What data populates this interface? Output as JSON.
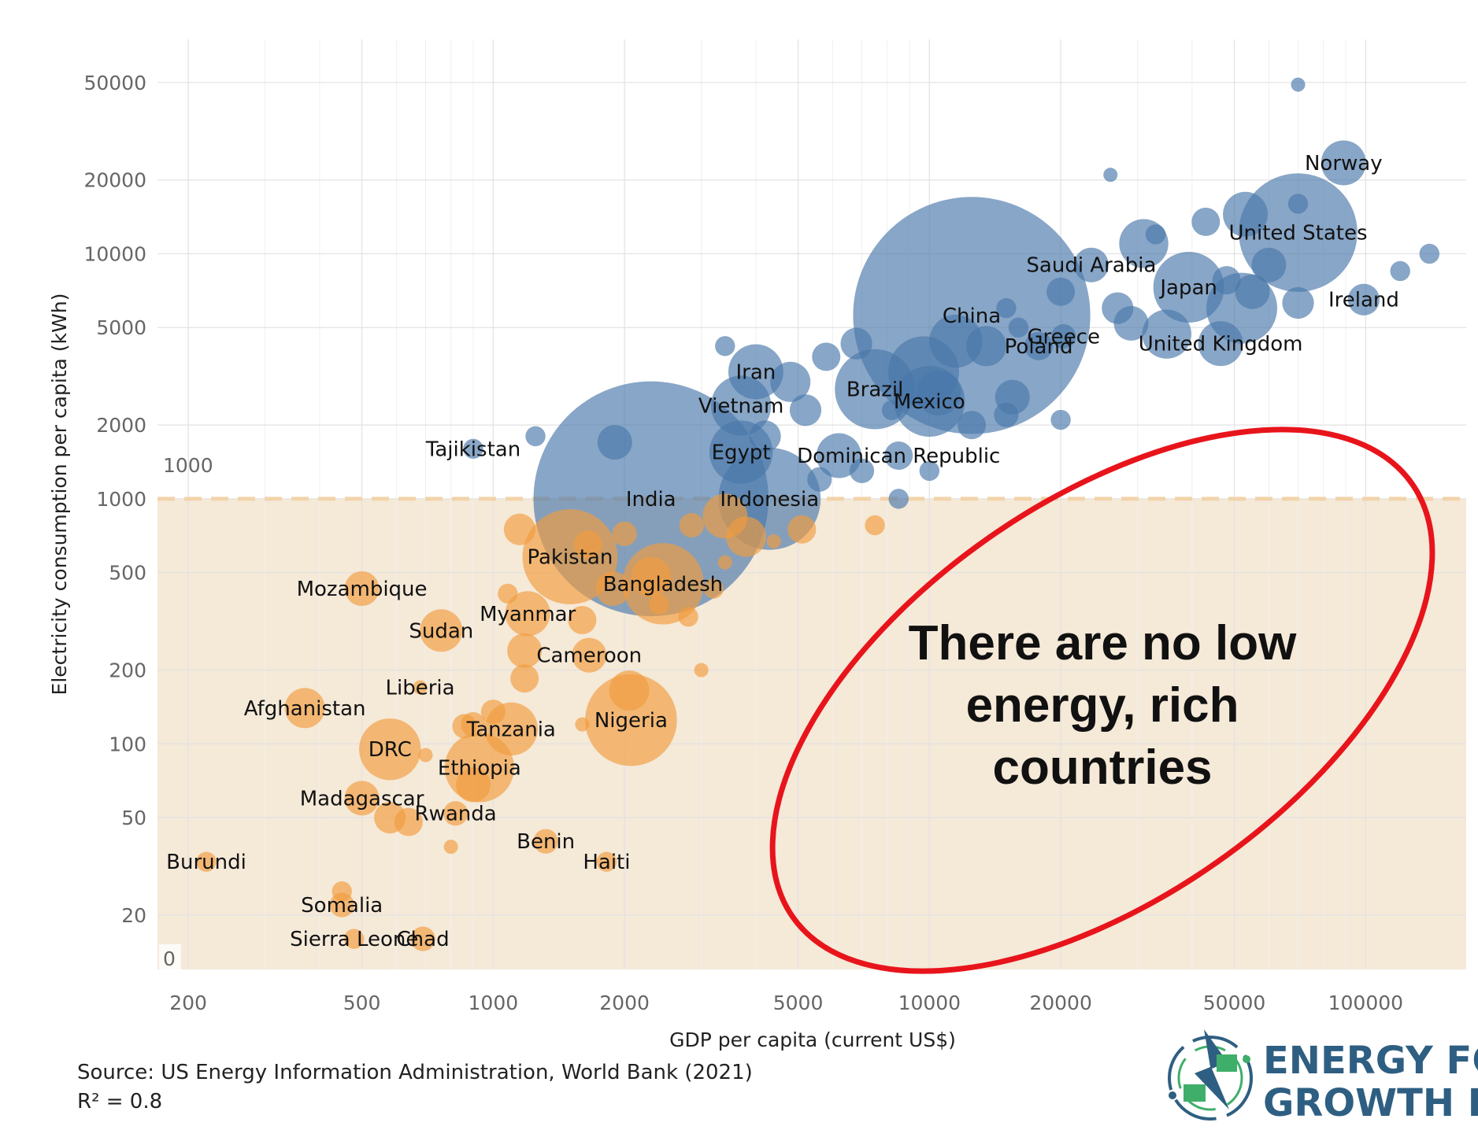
{
  "chart_data": {
    "type": "scatter",
    "xlabel": "GDP per capita (current US$)",
    "ylabel": "Electricity consumption per capita (kWh)",
    "x_scale": "log",
    "y_scale": "log",
    "xlim": [
      170,
      170000
    ],
    "ylim": [
      12,
      75000
    ],
    "x_ticks": [
      200,
      500,
      1000,
      2000,
      5000,
      10000,
      20000,
      50000,
      100000
    ],
    "y_ticks": [
      20,
      50,
      100,
      200,
      500,
      1000,
      2000,
      5000,
      10000,
      20000,
      50000
    ],
    "threshold": {
      "value": 1000,
      "label": "1000",
      "zero_label": "0",
      "color": "#f2d3aa",
      "fill": "#f5e9d8"
    },
    "colors": {
      "above": "#4a78aa",
      "below": "#f29d3e"
    },
    "grid": true,
    "points": [
      {
        "label": "Norway",
        "gdp": 89000,
        "kwh": 23500,
        "size": 10
      },
      {
        "label": "United States",
        "gdp": 70000,
        "kwh": 12200,
        "size": 70
      },
      {
        "label": "Ireland",
        "gdp": 99000,
        "kwh": 6500,
        "size": 5
      },
      {
        "label": "Japan",
        "gdp": 39300,
        "kwh": 7300,
        "size": 25
      },
      {
        "label": "United Kingdom",
        "gdp": 46500,
        "kwh": 4300,
        "size": 10
      },
      {
        "label": "Saudi Arabia",
        "gdp": 23500,
        "kwh": 9000,
        "size": 6
      },
      {
        "label": "Greece",
        "gdp": 20300,
        "kwh": 4600,
        "size": 3
      },
      {
        "label": "Poland",
        "gdp": 17800,
        "kwh": 4200,
        "size": 4
      },
      {
        "label": "China",
        "gdp": 12500,
        "kwh": 5600,
        "size": 280
      },
      {
        "label": "Iran",
        "gdp": 4000,
        "kwh": 3300,
        "size": 15
      },
      {
        "label": "Brazil",
        "gdp": 7500,
        "kwh": 2800,
        "size": 32
      },
      {
        "label": "Mexico",
        "gdp": 10000,
        "kwh": 2500,
        "size": 25
      },
      {
        "label": "Vietnam",
        "gdp": 3700,
        "kwh": 2400,
        "size": 18
      },
      {
        "label": "Egypt",
        "gdp": 3700,
        "kwh": 1550,
        "size": 20
      },
      {
        "label": "Dominican Republic",
        "gdp": 8500,
        "kwh": 1500,
        "size": 4
      },
      {
        "label": "Tajikistan",
        "gdp": 900,
        "kwh": 1600,
        "size": 2
      },
      {
        "label": "India",
        "gdp": 2300,
        "kwh": 1000,
        "size": 275
      },
      {
        "label": "Indonesia",
        "gdp": 4300,
        "kwh": 1000,
        "size": 52
      },
      {
        "label": "Pakistan",
        "gdp": 1500,
        "kwh": 580,
        "size": 45
      },
      {
        "label": "Bangladesh",
        "gdp": 2450,
        "kwh": 450,
        "size": 33
      },
      {
        "label": "Mozambique",
        "gdp": 500,
        "kwh": 430,
        "size": 6
      },
      {
        "label": "Myanmar",
        "gdp": 1200,
        "kwh": 340,
        "size": 10
      },
      {
        "label": "Sudan",
        "gdp": 760,
        "kwh": 290,
        "size": 9
      },
      {
        "label": "Cameroon",
        "gdp": 1660,
        "kwh": 230,
        "size": 6
      },
      {
        "label": "Liberia",
        "gdp": 680,
        "kwh": 170,
        "size": 1
      },
      {
        "label": "Afghanistan",
        "gdp": 370,
        "kwh": 140,
        "size": 8
      },
      {
        "label": "Nigeria",
        "gdp": 2070,
        "kwh": 125,
        "size": 42
      },
      {
        "label": "Tanzania",
        "gdp": 1100,
        "kwh": 115,
        "size": 14
      },
      {
        "label": "DRC",
        "gdp": 580,
        "kwh": 95,
        "size": 19
      },
      {
        "label": "Ethiopia",
        "gdp": 930,
        "kwh": 80,
        "size": 24
      },
      {
        "label": "Madagascar",
        "gdp": 500,
        "kwh": 60,
        "size": 6
      },
      {
        "label": "Rwanda",
        "gdp": 820,
        "kwh": 52,
        "size": 3
      },
      {
        "label": "Benin",
        "gdp": 1320,
        "kwh": 40,
        "size": 3
      },
      {
        "label": "Haiti",
        "gdp": 1820,
        "kwh": 33,
        "size": 2
      },
      {
        "label": "Burundi",
        "gdp": 220,
        "kwh": 33,
        "size": 2
      },
      {
        "label": "Somalia",
        "gdp": 450,
        "kwh": 22,
        "size": 3
      },
      {
        "label": "Sierra Leone",
        "gdp": 480,
        "kwh": 16,
        "size": 2
      },
      {
        "label": "Chad",
        "gdp": 690,
        "kwh": 16,
        "size": 3
      },
      {
        "gdp": 70000,
        "kwh": 49000,
        "size": 1
      },
      {
        "gdp": 26000,
        "kwh": 21000,
        "size": 1
      },
      {
        "gdp": 70000,
        "kwh": 16000,
        "size": 2
      },
      {
        "gdp": 53000,
        "kwh": 14500,
        "size": 10
      },
      {
        "gdp": 43000,
        "kwh": 13500,
        "size": 4
      },
      {
        "gdp": 31000,
        "kwh": 11000,
        "size": 12
      },
      {
        "gdp": 33000,
        "kwh": 12000,
        "size": 2
      },
      {
        "gdp": 140000,
        "kwh": 10000,
        "size": 2
      },
      {
        "gdp": 120000,
        "kwh": 8500,
        "size": 2
      },
      {
        "gdp": 60000,
        "kwh": 9000,
        "size": 6
      },
      {
        "gdp": 52000,
        "kwh": 6000,
        "size": 25
      },
      {
        "gdp": 48000,
        "kwh": 7800,
        "size": 4
      },
      {
        "gdp": 55000,
        "kwh": 7000,
        "size": 6
      },
      {
        "gdp": 70000,
        "kwh": 6300,
        "size": 5
      },
      {
        "gdp": 27000,
        "kwh": 6000,
        "size": 5
      },
      {
        "gdp": 35000,
        "kwh": 4700,
        "size": 12
      },
      {
        "gdp": 29000,
        "kwh": 5200,
        "size": 6
      },
      {
        "gdp": 16000,
        "kwh": 5000,
        "size": 2
      },
      {
        "gdp": 20000,
        "kwh": 7000,
        "size": 4
      },
      {
        "gdp": 13500,
        "kwh": 4200,
        "size": 8
      },
      {
        "gdp": 15000,
        "kwh": 6000,
        "size": 2
      },
      {
        "gdp": 11500,
        "kwh": 4400,
        "size": 14
      },
      {
        "gdp": 9700,
        "kwh": 3300,
        "size": 25
      },
      {
        "gdp": 10500,
        "kwh": 2700,
        "size": 10
      },
      {
        "gdp": 15500,
        "kwh": 2600,
        "size": 6
      },
      {
        "gdp": 15000,
        "kwh": 2200,
        "size": 3
      },
      {
        "gdp": 12500,
        "kwh": 2000,
        "size": 4
      },
      {
        "gdp": 20000,
        "kwh": 2100,
        "size": 2
      },
      {
        "gdp": 6800,
        "kwh": 4300,
        "size": 5
      },
      {
        "gdp": 5800,
        "kwh": 3800,
        "size": 4
      },
      {
        "gdp": 4800,
        "kwh": 3000,
        "size": 8
      },
      {
        "gdp": 5200,
        "kwh": 2300,
        "size": 5
      },
      {
        "gdp": 8200,
        "kwh": 2300,
        "size": 2
      },
      {
        "gdp": 3400,
        "kwh": 4200,
        "size": 2
      },
      {
        "gdp": 4200,
        "kwh": 1800,
        "size": 5
      },
      {
        "gdp": 6200,
        "kwh": 1500,
        "size": 10
      },
      {
        "gdp": 7000,
        "kwh": 1300,
        "size": 3
      },
      {
        "gdp": 5600,
        "kwh": 1200,
        "size": 3
      },
      {
        "gdp": 10000,
        "kwh": 1300,
        "size": 2
      },
      {
        "gdp": 8500,
        "kwh": 1000,
        "size": 2
      },
      {
        "gdp": 1900,
        "kwh": 1700,
        "size": 6
      },
      {
        "gdp": 1250,
        "kwh": 1800,
        "size": 2
      },
      {
        "gdp": 3400,
        "kwh": 850,
        "size": 10
      },
      {
        "gdp": 2850,
        "kwh": 780,
        "size": 3
      },
      {
        "gdp": 2000,
        "kwh": 720,
        "size": 3
      },
      {
        "gdp": 3800,
        "kwh": 700,
        "size": 8
      },
      {
        "gdp": 5100,
        "kwh": 750,
        "size": 4
      },
      {
        "gdp": 4400,
        "kwh": 670,
        "size": 1
      },
      {
        "gdp": 7500,
        "kwh": 780,
        "size": 2
      },
      {
        "gdp": 1150,
        "kwh": 750,
        "size": 5
      },
      {
        "gdp": 1650,
        "kwh": 650,
        "size": 4
      },
      {
        "gdp": 3400,
        "kwh": 550,
        "size": 1
      },
      {
        "gdp": 2300,
        "kwh": 480,
        "size": 8
      },
      {
        "gdp": 1880,
        "kwh": 430,
        "size": 6
      },
      {
        "gdp": 2400,
        "kwh": 370,
        "size": 2
      },
      {
        "gdp": 3200,
        "kwh": 430,
        "size": 2
      },
      {
        "gdp": 2800,
        "kwh": 330,
        "size": 2
      },
      {
        "gdp": 1080,
        "kwh": 410,
        "size": 2
      },
      {
        "gdp": 1600,
        "kwh": 320,
        "size": 4
      },
      {
        "gdp": 1180,
        "kwh": 240,
        "size": 6
      },
      {
        "gdp": 1180,
        "kwh": 185,
        "size": 4
      },
      {
        "gdp": 3000,
        "kwh": 200,
        "size": 1
      },
      {
        "gdp": 2050,
        "kwh": 165,
        "size": 8
      },
      {
        "gdp": 1000,
        "kwh": 135,
        "size": 3
      },
      {
        "gdp": 900,
        "kwh": 120,
        "size": 3
      },
      {
        "gdp": 1600,
        "kwh": 120,
        "size": 1
      },
      {
        "gdp": 860,
        "kwh": 118,
        "size": 3
      },
      {
        "gdp": 900,
        "kwh": 68,
        "size": 6
      },
      {
        "gdp": 700,
        "kwh": 90,
        "size": 1
      },
      {
        "gdp": 580,
        "kwh": 50,
        "size": 5
      },
      {
        "gdp": 640,
        "kwh": 48,
        "size": 4
      },
      {
        "gdp": 800,
        "kwh": 38,
        "size": 1
      },
      {
        "gdp": 450,
        "kwh": 25,
        "size": 2
      }
    ]
  },
  "annotation": {
    "callout_lines": [
      "There are no low",
      "energy, rich",
      "countries"
    ],
    "ellipse_color": "#e8141b"
  },
  "footer": {
    "source": "Source: US Energy Information Administration, World Bank (2021)",
    "r_squared": "R² = 0.8"
  },
  "logo": {
    "line1": "ENERGY FOR",
    "line2": "GROWTH HUB",
    "icon": "energy-hub-logo-icon",
    "colors": {
      "blue": "#2e5f82",
      "green": "#3fae6a"
    }
  }
}
